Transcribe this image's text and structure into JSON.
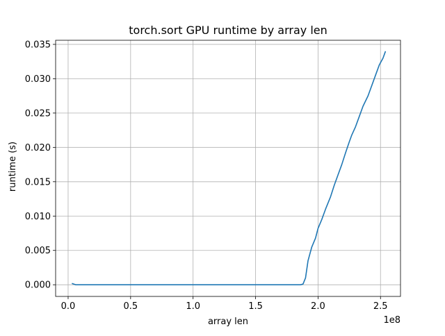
{
  "chart_data": {
    "type": "line",
    "title": "torch.sort GPU runtime by array len",
    "xlabel": "array len",
    "ylabel": "runtime (s)",
    "x_offset_label": "1e8",
    "xlim": [
      -0.1,
      2.66
    ],
    "ylim": [
      -0.0017,
      0.0356
    ],
    "x_ticks": [
      0.0,
      0.5,
      1.0,
      1.5,
      2.0,
      2.5
    ],
    "x_tick_labels": [
      "0.0",
      "0.5",
      "1.0",
      "1.5",
      "2.0",
      "2.5"
    ],
    "y_ticks": [
      0.0,
      0.005,
      0.01,
      0.015,
      0.02,
      0.025,
      0.03,
      0.035
    ],
    "y_tick_labels": [
      "0.000",
      "0.005",
      "0.010",
      "0.015",
      "0.020",
      "0.025",
      "0.030",
      "0.035"
    ],
    "grid": true,
    "series": [
      {
        "color": "#1f77b4",
        "x": [
          0.03,
          0.06,
          0.1,
          0.2,
          0.4,
          0.6,
          0.8,
          1.0,
          1.2,
          1.4,
          1.6,
          1.7,
          1.8,
          1.86,
          1.88,
          1.9,
          1.92,
          1.95,
          1.98,
          2.0,
          2.03,
          2.06,
          2.1,
          2.13,
          2.16,
          2.19,
          2.22,
          2.25,
          2.27,
          2.3,
          2.33,
          2.36,
          2.4,
          2.43,
          2.46,
          2.49,
          2.52,
          2.54
        ],
        "y": [
          0.0002,
          0.0,
          0.0,
          0.0,
          0.0,
          0.0,
          0.0,
          0.0,
          0.0,
          0.0,
          0.0,
          0.0,
          0.0,
          0.0,
          0.0001,
          0.001,
          0.0035,
          0.0055,
          0.0068,
          0.0082,
          0.0095,
          0.011,
          0.0128,
          0.0145,
          0.016,
          0.0175,
          0.0192,
          0.0208,
          0.0218,
          0.023,
          0.0245,
          0.026,
          0.0275,
          0.029,
          0.0305,
          0.032,
          0.033,
          0.034
        ]
      }
    ]
  }
}
